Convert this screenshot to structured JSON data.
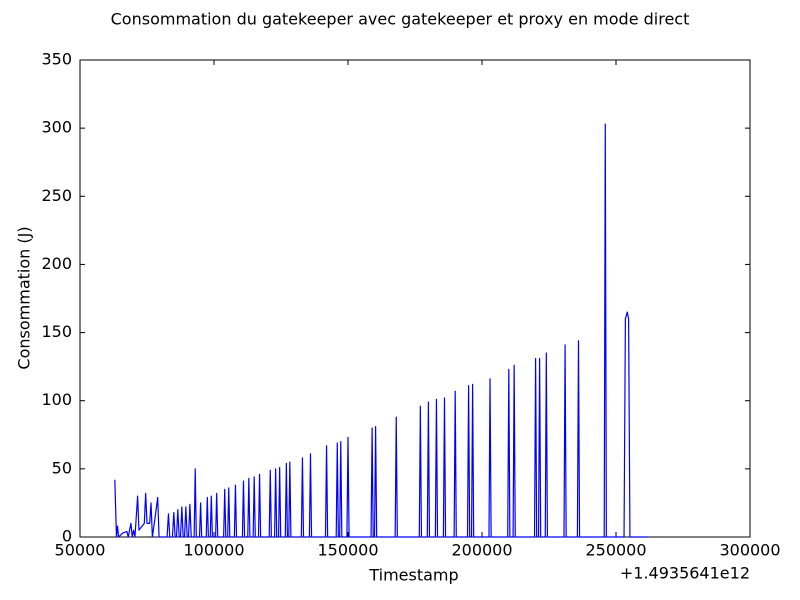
{
  "chart_data": {
    "type": "line",
    "title": "Consommation du gatekeeper avec gatekeeper et proxy en mode direct",
    "x_label": "Timestamp",
    "y_label": "Consommation (J)",
    "x_offset_label": "+1.4935641e12",
    "xlim": [
      50000,
      300000
    ],
    "xticks": [
      50000,
      100000,
      150000,
      200000,
      250000,
      300000
    ],
    "ylim": [
      0,
      350
    ],
    "yticks": [
      0,
      50,
      100,
      150,
      200,
      250,
      300,
      350
    ],
    "grid": false,
    "x": [
      63000,
      63600,
      64000,
      64400,
      66000,
      67500,
      68000,
      69000,
      69500,
      70000,
      70500,
      71500,
      72000,
      74000,
      74500,
      75000,
      76000,
      76500,
      77000,
      78000,
      79000,
      79500,
      82500,
      83000,
      83500,
      84500,
      85000,
      85500,
      86000,
      86500,
      87000,
      87500,
      88000,
      88500,
      89000,
      89500,
      90000,
      90500,
      91000,
      91500,
      92600,
      93000,
      93400,
      94600,
      95000,
      95400,
      97100,
      97500,
      97900,
      98600,
      99000,
      99400,
      100600,
      101000,
      101400,
      103600,
      104000,
      104400,
      105100,
      105500,
      105900,
      107600,
      108000,
      108400,
      110600,
      111000,
      111400,
      112600,
      113000,
      113400,
      114600,
      115000,
      115400,
      116600,
      117000,
      117400,
      120600,
      121000,
      121400,
      122600,
      123000,
      123400,
      124100,
      124500,
      124900,
      126600,
      127000,
      127400,
      127900,
      128300,
      128700,
      132600,
      133000,
      133400,
      135600,
      136000,
      136400,
      141600,
      142000,
      142400,
      145600,
      146000,
      146400,
      146900,
      147300,
      147700,
      149600,
      150000,
      150400,
      158600,
      159000,
      159400,
      159900,
      160300,
      160700,
      167600,
      168000,
      168400,
      176600,
      177000,
      177400,
      179600,
      180000,
      180400,
      182600,
      183000,
      183400,
      185600,
      186000,
      186400,
      189600,
      190000,
      190400,
      194600,
      195000,
      195400,
      196100,
      196500,
      196900,
      202600,
      203000,
      203400,
      209600,
      210000,
      210400,
      211600,
      212000,
      212400,
      219600,
      220000,
      220400,
      221100,
      221500,
      221900,
      223600,
      224000,
      224400,
      230600,
      231000,
      231400,
      235600,
      236000,
      236400,
      245600,
      246000,
      246400,
      253000,
      253500,
      254200,
      254700,
      255200,
      262000
    ],
    "series": [
      {
        "name": "Consommation",
        "color": "#0000ff",
        "values": [
          42,
          0,
          8,
          0,
          3,
          4,
          0,
          10,
          0,
          5,
          0,
          30,
          5,
          10,
          32,
          10,
          10,
          25,
          0,
          14,
          29,
          0,
          0,
          17,
          0,
          0,
          18,
          0,
          0,
          20,
          0,
          0,
          22,
          0,
          0,
          22,
          0,
          0,
          24,
          0,
          0,
          50,
          0,
          0,
          25,
          0,
          0,
          29,
          0,
          0,
          30,
          0,
          0,
          32,
          0,
          0,
          35,
          0,
          0,
          36,
          0,
          0,
          38,
          0,
          0,
          41,
          0,
          0,
          43,
          0,
          0,
          44,
          0,
          0,
          46,
          0,
          0,
          49,
          0,
          0,
          50,
          0,
          0,
          51,
          0,
          0,
          54,
          0,
          0,
          55,
          0,
          0,
          58,
          0,
          0,
          61,
          0,
          0,
          67,
          0,
          0,
          69,
          0,
          0,
          70,
          0,
          0,
          73,
          0,
          0,
          80,
          0,
          0,
          81,
          0,
          0,
          88,
          0,
          0,
          96,
          0,
          0,
          99,
          0,
          0,
          101,
          0,
          0,
          102,
          0,
          0,
          107,
          0,
          0,
          111,
          0,
          0,
          112,
          0,
          0,
          116,
          0,
          0,
          123,
          0,
          0,
          126,
          0,
          0,
          131,
          0,
          0,
          131,
          0,
          0,
          135,
          0,
          0,
          141,
          0,
          0,
          144,
          0,
          0,
          303,
          0,
          0,
          160,
          165,
          160,
          0,
          0
        ]
      }
    ]
  }
}
